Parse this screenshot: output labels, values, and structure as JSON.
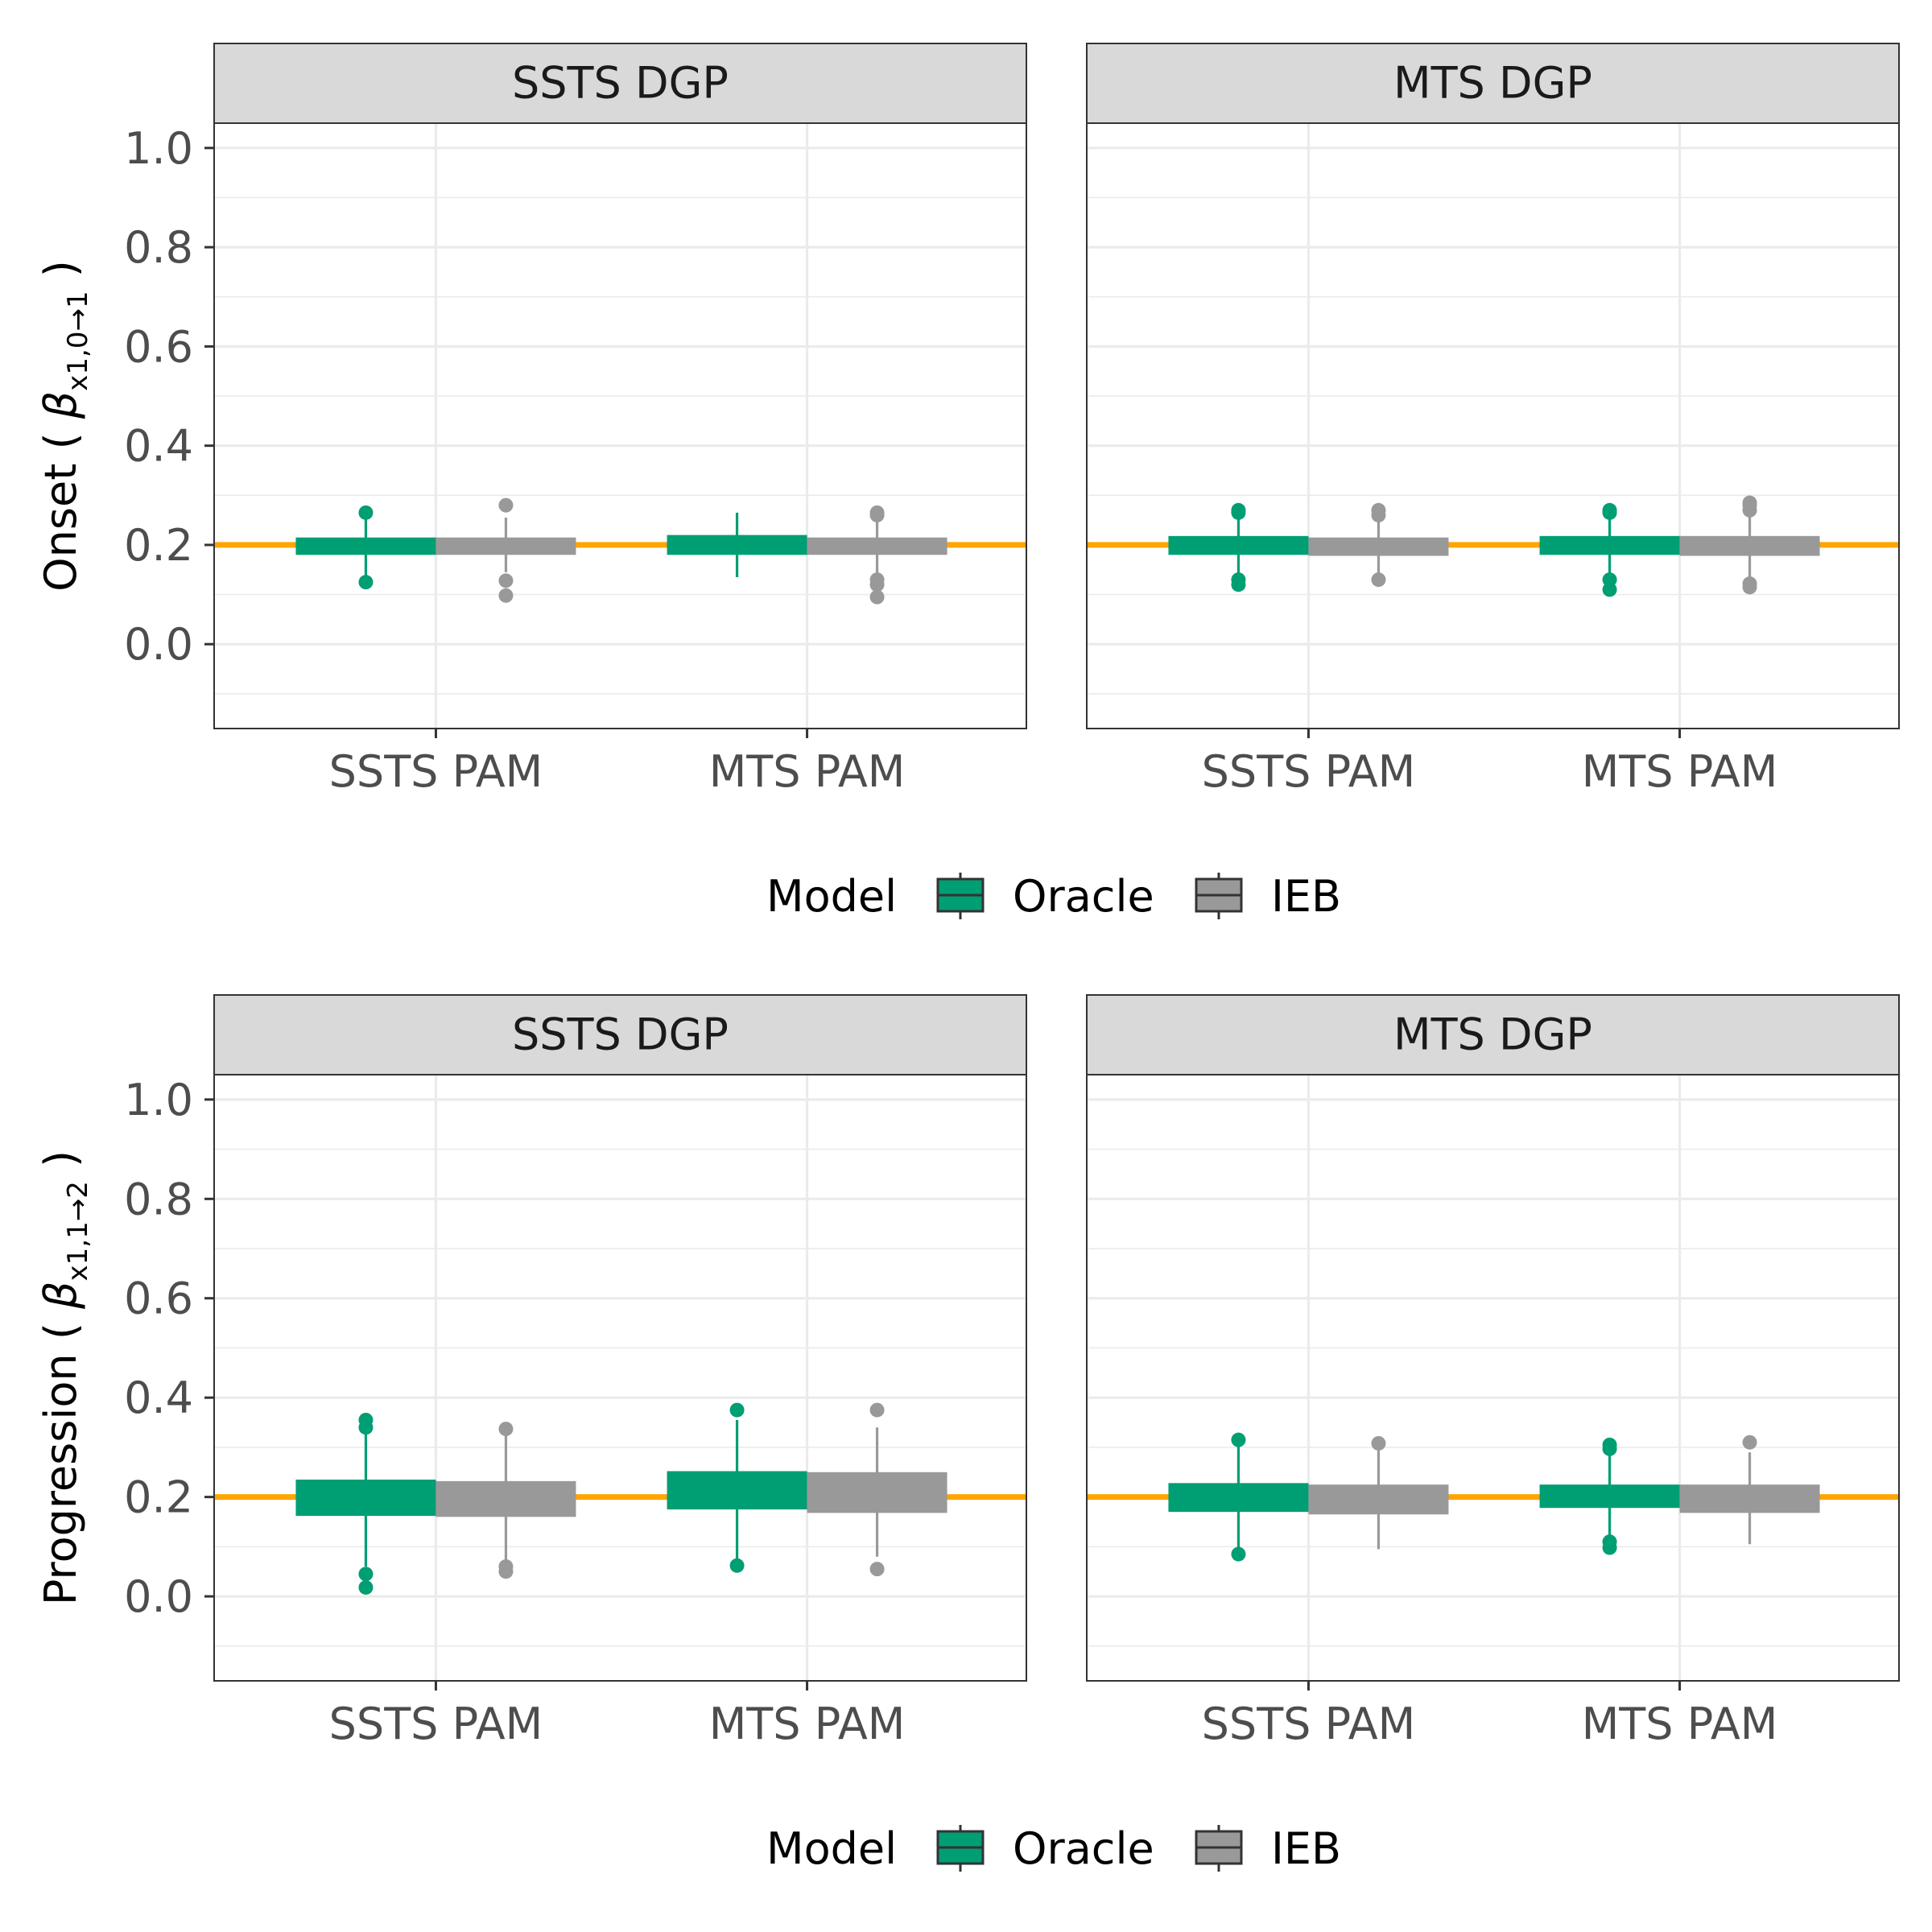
{
  "reference_color": "#FFA500",
  "colors": {
    "Oracle": "#009E73",
    "IEB": "#999999"
  },
  "legend_title": "Model",
  "legend_items": [
    {
      "name": "Oracle",
      "color": "#009E73"
    },
    {
      "name": "IEB",
      "color": "#999999"
    }
  ],
  "chart_data": [
    {
      "type": "boxplot",
      "ylabel": "Onset ( β x1,0→1 )",
      "ylabel_main": "Onset (",
      "ylabel_math": "β",
      "ylabel_sub": "x1,0→1",
      "ylabel_close": ")",
      "ylim": [
        -0.17,
        1.05
      ],
      "yticks": [
        0.0,
        0.2,
        0.4,
        0.6,
        0.8,
        1.0
      ],
      "ytick_labels": [
        "0.0",
        "0.2",
        "0.4",
        "0.6",
        "0.8",
        "1.0"
      ],
      "reference_line": 0.2,
      "grid": true,
      "legend_position": "bottom",
      "categories": [
        "SSTS PAM",
        "MTS PAM"
      ],
      "facets": [
        {
          "title": "SSTS DGP",
          "groups": [
            {
              "category": "SSTS PAM",
              "series": "Oracle",
              "q1": 0.18,
              "median": 0.2,
              "q3": 0.215,
              "whisker_low": 0.135,
              "whisker_high": 0.26,
              "outliers": [
                0.265,
                0.125
              ]
            },
            {
              "category": "SSTS PAM",
              "series": "IEB",
              "q1": 0.18,
              "median": 0.2,
              "q3": 0.215,
              "whisker_low": 0.145,
              "whisker_high": 0.255,
              "outliers": [
                0.28,
                0.128,
                0.098
              ]
            },
            {
              "category": "MTS PAM",
              "series": "Oracle",
              "q1": 0.18,
              "median": 0.2,
              "q3": 0.22,
              "whisker_low": 0.135,
              "whisker_high": 0.265,
              "outliers": []
            },
            {
              "category": "MTS PAM",
              "series": "IEB",
              "q1": 0.18,
              "median": 0.2,
              "q3": 0.215,
              "whisker_low": 0.14,
              "whisker_high": 0.255,
              "outliers": [
                0.265,
                0.26,
                0.13,
                0.12,
                0.095
              ]
            }
          ]
        },
        {
          "title": "MTS DGP",
          "groups": [
            {
              "category": "SSTS PAM",
              "series": "Oracle",
              "q1": 0.18,
              "median": 0.2,
              "q3": 0.218,
              "whisker_low": 0.138,
              "whisker_high": 0.26,
              "outliers": [
                0.27,
                0.265,
                0.13,
                0.12
              ]
            },
            {
              "category": "SSTS PAM",
              "series": "IEB",
              "q1": 0.178,
              "median": 0.198,
              "q3": 0.215,
              "whisker_low": 0.14,
              "whisker_high": 0.255,
              "outliers": [
                0.27,
                0.26,
                0.13
              ]
            },
            {
              "category": "MTS PAM",
              "series": "Oracle",
              "q1": 0.18,
              "median": 0.2,
              "q3": 0.218,
              "whisker_low": 0.14,
              "whisker_high": 0.26,
              "outliers": [
                0.27,
                0.265,
                0.13,
                0.11
              ]
            },
            {
              "category": "MTS PAM",
              "series": "IEB",
              "q1": 0.178,
              "median": 0.198,
              "q3": 0.218,
              "whisker_low": 0.13,
              "whisker_high": 0.265,
              "outliers": [
                0.285,
                0.28,
                0.27,
                0.122,
                0.115
              ]
            }
          ]
        }
      ]
    },
    {
      "type": "boxplot",
      "ylabel": "Progression ( β x1,1→2 )",
      "ylabel_main": "Progression (",
      "ylabel_math": "β",
      "ylabel_sub": "x1,1→2",
      "ylabel_close": ")",
      "ylim": [
        -0.17,
        1.05
      ],
      "yticks": [
        0.0,
        0.2,
        0.4,
        0.6,
        0.8,
        1.0
      ],
      "ytick_labels": [
        "0.0",
        "0.2",
        "0.4",
        "0.6",
        "0.8",
        "1.0"
      ],
      "reference_line": 0.2,
      "grid": true,
      "legend_position": "bottom",
      "categories": [
        "SSTS PAM",
        "MTS PAM"
      ],
      "facets": [
        {
          "title": "SSTS DGP",
          "groups": [
            {
              "category": "SSTS PAM",
              "series": "Oracle",
              "q1": 0.162,
              "median": 0.2,
              "q3": 0.235,
              "whisker_low": 0.06,
              "whisker_high": 0.34,
              "outliers": [
                0.355,
                0.34,
                0.045,
                0.018
              ]
            },
            {
              "category": "SSTS PAM",
              "series": "IEB",
              "q1": 0.16,
              "median": 0.2,
              "q3": 0.232,
              "whisker_low": 0.07,
              "whisker_high": 0.33,
              "outliers": [
                0.337,
                0.06,
                0.05
              ]
            },
            {
              "category": "MTS PAM",
              "series": "Oracle",
              "q1": 0.175,
              "median": 0.2,
              "q3": 0.252,
              "whisker_low": 0.07,
              "whisker_high": 0.355,
              "outliers": [
                0.375,
                0.062
              ]
            },
            {
              "category": "MTS PAM",
              "series": "IEB",
              "q1": 0.168,
              "median": 0.2,
              "q3": 0.25,
              "whisker_low": 0.08,
              "whisker_high": 0.34,
              "outliers": [
                0.375,
                0.055
              ]
            }
          ]
        },
        {
          "title": "MTS DGP",
          "groups": [
            {
              "category": "SSTS PAM",
              "series": "Oracle",
              "q1": 0.17,
              "median": 0.2,
              "q3": 0.228,
              "whisker_low": 0.095,
              "whisker_high": 0.305,
              "outliers": [
                0.315,
                0.085
              ]
            },
            {
              "category": "SSTS PAM",
              "series": "IEB",
              "q1": 0.165,
              "median": 0.2,
              "q3": 0.225,
              "whisker_low": 0.095,
              "whisker_high": 0.305,
              "outliers": [
                0.308
              ]
            },
            {
              "category": "MTS PAM",
              "series": "Oracle",
              "q1": 0.178,
              "median": 0.2,
              "q3": 0.225,
              "whisker_low": 0.11,
              "whisker_high": 0.295,
              "outliers": [
                0.305,
                0.297,
                0.11,
                0.098
              ]
            },
            {
              "category": "MTS PAM",
              "series": "IEB",
              "q1": 0.168,
              "median": 0.2,
              "q3": 0.225,
              "whisker_low": 0.105,
              "whisker_high": 0.29,
              "outliers": [
                0.31
              ]
            }
          ]
        }
      ]
    }
  ]
}
